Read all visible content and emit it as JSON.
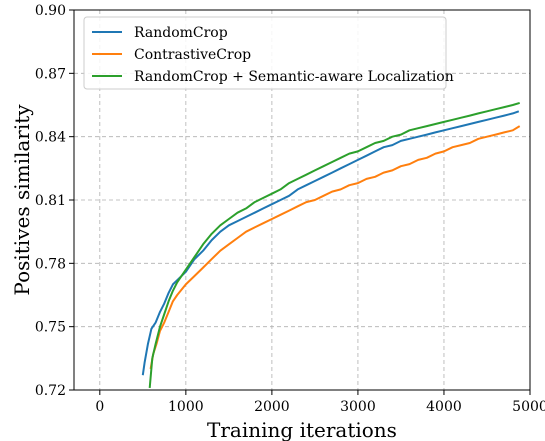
{
  "chart_data": {
    "type": "line",
    "title": "",
    "xlabel": "Training iterations",
    "ylabel": "Positives similarity",
    "xlim": [
      -300,
      5000
    ],
    "ylim": [
      0.72,
      0.9
    ],
    "xticks": [
      0,
      1000,
      2000,
      3000,
      4000,
      5000
    ],
    "xtick_labels": [
      "0",
      "1000",
      "2000",
      "3000",
      "4000",
      "5000"
    ],
    "yticks": [
      0.72,
      0.75,
      0.78,
      0.81,
      0.84,
      0.87,
      0.9
    ],
    "ytick_labels": [
      "0.72",
      "0.75",
      "0.78",
      "0.81",
      "0.84",
      "0.87",
      "0.90"
    ],
    "grid": true,
    "legend_position": "top-left",
    "series": [
      {
        "name": "RandomCrop",
        "color": "#1f77b4",
        "x": [
          500,
          520,
          560,
          600,
          650,
          700,
          750,
          800,
          850,
          900,
          1000,
          1100,
          1200,
          1300,
          1400,
          1500,
          1600,
          1700,
          1800,
          1900,
          2000,
          2100,
          2200,
          2300,
          2400,
          2500,
          2600,
          2700,
          2800,
          2900,
          3000,
          3100,
          3200,
          3300,
          3400,
          3500,
          3600,
          3700,
          3800,
          3900,
          4000,
          4100,
          4200,
          4300,
          4400,
          4500,
          4600,
          4700,
          4800,
          4870
        ],
        "y": [
          0.727,
          0.733,
          0.742,
          0.749,
          0.752,
          0.757,
          0.761,
          0.766,
          0.77,
          0.772,
          0.776,
          0.782,
          0.786,
          0.791,
          0.795,
          0.798,
          0.8,
          0.802,
          0.804,
          0.806,
          0.808,
          0.81,
          0.812,
          0.815,
          0.817,
          0.819,
          0.821,
          0.823,
          0.825,
          0.827,
          0.829,
          0.831,
          0.833,
          0.835,
          0.836,
          0.838,
          0.839,
          0.84,
          0.841,
          0.842,
          0.843,
          0.844,
          0.845,
          0.846,
          0.847,
          0.848,
          0.849,
          0.85,
          0.851,
          0.852
        ]
      },
      {
        "name": "ContrastiveCrop",
        "color": "#ff7f0e",
        "x": [
          590,
          620,
          660,
          700,
          750,
          800,
          850,
          900,
          1000,
          1100,
          1200,
          1300,
          1400,
          1500,
          1600,
          1700,
          1800,
          1900,
          2000,
          2100,
          2200,
          2300,
          2400,
          2500,
          2600,
          2700,
          2800,
          2900,
          3000,
          3100,
          3200,
          3300,
          3400,
          3500,
          3600,
          3700,
          3800,
          3900,
          4000,
          4100,
          4200,
          4300,
          4400,
          4500,
          4600,
          4700,
          4800,
          4880
        ],
        "y": [
          0.73,
          0.737,
          0.742,
          0.748,
          0.752,
          0.757,
          0.762,
          0.765,
          0.77,
          0.774,
          0.778,
          0.782,
          0.786,
          0.789,
          0.792,
          0.795,
          0.797,
          0.799,
          0.801,
          0.803,
          0.805,
          0.807,
          0.809,
          0.81,
          0.812,
          0.814,
          0.815,
          0.817,
          0.818,
          0.82,
          0.821,
          0.823,
          0.824,
          0.826,
          0.827,
          0.829,
          0.83,
          0.832,
          0.833,
          0.835,
          0.836,
          0.837,
          0.839,
          0.84,
          0.841,
          0.842,
          0.843,
          0.845
        ]
      },
      {
        "name": "RandomCrop + Semantic-aware Localization",
        "color": "#2ca02c",
        "x": [
          580,
          610,
          650,
          700,
          750,
          800,
          850,
          900,
          1000,
          1100,
          1200,
          1300,
          1400,
          1500,
          1600,
          1700,
          1800,
          1900,
          2000,
          2100,
          2200,
          2300,
          2400,
          2500,
          2600,
          2700,
          2800,
          2900,
          3000,
          3100,
          3200,
          3300,
          3400,
          3500,
          3600,
          3700,
          3800,
          3900,
          4000,
          4100,
          4200,
          4300,
          4400,
          4500,
          4600,
          4700,
          4800,
          4880
        ],
        "y": [
          0.721,
          0.735,
          0.742,
          0.75,
          0.756,
          0.762,
          0.767,
          0.771,
          0.777,
          0.783,
          0.789,
          0.794,
          0.798,
          0.801,
          0.804,
          0.806,
          0.809,
          0.811,
          0.813,
          0.815,
          0.818,
          0.82,
          0.822,
          0.824,
          0.826,
          0.828,
          0.83,
          0.832,
          0.833,
          0.835,
          0.837,
          0.838,
          0.84,
          0.841,
          0.843,
          0.844,
          0.845,
          0.846,
          0.847,
          0.848,
          0.849,
          0.85,
          0.851,
          0.852,
          0.853,
          0.854,
          0.855,
          0.856
        ]
      }
    ]
  }
}
